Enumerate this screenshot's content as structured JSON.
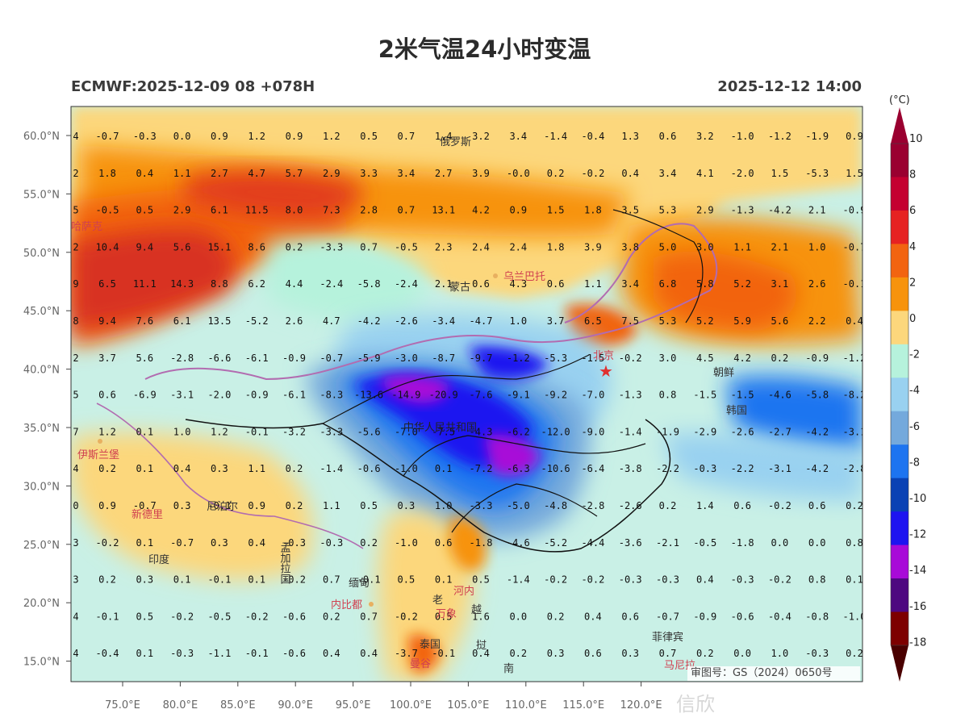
{
  "title": "2米气温24小时变温",
  "model_run": "ECMWF:2025-12-09 08 +078H",
  "valid_time": "2025-12-12 14:00",
  "colorbar": {
    "unit": "(°C)",
    "ticks": [
      "10",
      "8",
      "6",
      "4",
      "2",
      "0",
      "-2",
      "-4",
      "-6",
      "-8",
      "-10",
      "-12",
      "-14",
      "-16",
      "-18"
    ],
    "colors": [
      "#9a0030",
      "#c40030",
      "#e62222",
      "#f26411",
      "#f7930c",
      "#fcd77c",
      "#b6f2dc",
      "#99d1f0",
      "#74a9dc",
      "#1d74f0",
      "#0a42b4",
      "#1e14f0",
      "#a80ad8",
      "#4e0880",
      "#7d0000"
    ]
  },
  "lat_labels": [
    "60.0°N",
    "55.0°N",
    "50.0°N",
    "45.0°N",
    "40.0°N",
    "35.0°N",
    "30.0°N",
    "25.0°N",
    "20.0°N",
    "15.0°N"
  ],
  "lon_labels": [
    "75.0°E",
    "80.0°E",
    "85.0°E",
    "90.0°E",
    "95.0°E",
    "100.0°E",
    "105.0°E",
    "110.0°E",
    "115.0°E",
    "120.0°E"
  ],
  "grid_values": [
    [
      "4",
      "-0.7",
      "-0.3",
      "0.0",
      "0.9",
      "1.2",
      "0.9",
      "1.2",
      "0.5",
      "0.7",
      "1.4",
      "3.2",
      "3.4",
      "-1.4",
      "-0.4",
      "1.3",
      "0.6",
      "3.2",
      "-1.0",
      "-1.2",
      "-1.9",
      "0.9"
    ],
    [
      "2",
      "1.8",
      "0.4",
      "1.1",
      "2.7",
      "4.7",
      "5.7",
      "2.9",
      "3.3",
      "3.4",
      "2.7",
      "3.9",
      "-0.0",
      "0.2",
      "-0.2",
      "0.4",
      "3.4",
      "4.1",
      "-2.0",
      "1.5",
      "-5.3",
      "1.5"
    ],
    [
      "5",
      "-0.5",
      "0.5",
      "2.9",
      "6.1",
      "11.5",
      "8.0",
      "7.3",
      "2.8",
      "0.7",
      "13.1",
      "4.2",
      "0.9",
      "1.5",
      "1.8",
      "3.5",
      "5.3",
      "2.9",
      "-1.3",
      "-4.2",
      "2.1",
      "-0.9"
    ],
    [
      "2",
      "10.4",
      "9.4",
      "5.6",
      "15.1",
      "8.6",
      "0.2",
      "-3.3",
      "0.7",
      "-0.5",
      "2.3",
      "2.4",
      "2.4",
      "1.8",
      "3.9",
      "3.8",
      "5.0",
      "3.0",
      "1.1",
      "2.1",
      "1.0",
      "-0.7"
    ],
    [
      "9",
      "6.5",
      "11.1",
      "14.3",
      "8.8",
      "6.2",
      "4.4",
      "-2.4",
      "-5.8",
      "-2.4",
      "2.1",
      "0.6",
      "4.3",
      "0.6",
      "1.1",
      "3.4",
      "6.8",
      "5.8",
      "5.2",
      "3.1",
      "2.6",
      "-0.1"
    ],
    [
      "8",
      "9.4",
      "7.6",
      "6.1",
      "13.5",
      "-5.2",
      "2.6",
      "4.7",
      "-4.2",
      "-2.6",
      "-3.4",
      "-4.7",
      "1.0",
      "3.7",
      "6.5",
      "7.5",
      "5.3",
      "5.2",
      "5.9",
      "5.6",
      "2.2",
      "0.4"
    ],
    [
      "2",
      "3.7",
      "5.6",
      "-2.8",
      "-6.6",
      "-6.1",
      "-0.9",
      "-0.7",
      "-5.9",
      "-3.0",
      "-8.7",
      "-9.7",
      "-1.2",
      "-5.3",
      "-1.5",
      "-0.2",
      "3.0",
      "4.5",
      "4.2",
      "0.2",
      "-0.9",
      "-1.2"
    ],
    [
      "5",
      "0.6",
      "-6.9",
      "-3.1",
      "-2.0",
      "-0.9",
      "-6.1",
      "-8.3",
      "-13.6",
      "-14.9",
      "-20.9",
      "-7.6",
      "-9.1",
      "-9.2",
      "-7.0",
      "-1.3",
      "0.8",
      "-1.5",
      "-1.5",
      "-4.6",
      "-5.8",
      "-8.2"
    ],
    [
      "7",
      "1.2",
      "0.1",
      "1.0",
      "1.2",
      "-0.1",
      "-3.2",
      "-3.3",
      "-5.6",
      "-7.0",
      "-7.5",
      "-4.3",
      "-6.2",
      "-12.0",
      "-9.0",
      "-1.4",
      "-1.9",
      "-2.9",
      "-2.6",
      "-2.7",
      "-4.2",
      "-3.1"
    ],
    [
      "4",
      "0.2",
      "0.1",
      "0.4",
      "0.3",
      "1.1",
      "0.2",
      "-1.4",
      "-0.6",
      "-1.0",
      "0.1",
      "-7.2",
      "-6.3",
      "-10.6",
      "-6.4",
      "-3.8",
      "-2.2",
      "-0.3",
      "-2.2",
      "-3.1",
      "-4.2",
      "-2.8"
    ],
    [
      "0",
      "0.9",
      "-0.7",
      "0.3",
      "-0.1",
      "0.9",
      "0.2",
      "1.1",
      "0.5",
      "0.3",
      "1.0",
      "-3.3",
      "-5.0",
      "-4.8",
      "-2.8",
      "-2.6",
      "0.2",
      "1.4",
      "0.6",
      "-0.2",
      "0.6",
      "0.2"
    ],
    [
      "3",
      "-0.2",
      "0.1",
      "-0.7",
      "0.3",
      "0.4",
      "-0.3",
      "-0.3",
      "0.2",
      "-1.0",
      "0.6",
      "-1.8",
      "-4.6",
      "-5.2",
      "-4.4",
      "-3.6",
      "-2.1",
      "-0.5",
      "-1.8",
      "0.0",
      "0.0",
      "0.8"
    ],
    [
      "3",
      "0.2",
      "0.3",
      "0.1",
      "-0.1",
      "0.1",
      "-0.2",
      "0.7",
      "-0.1",
      "0.5",
      "0.1",
      "0.5",
      "-1.4",
      "-0.2",
      "-0.2",
      "-0.3",
      "-0.3",
      "0.4",
      "-0.3",
      "-0.2",
      "0.8",
      "0.1"
    ],
    [
      "4",
      "-0.1",
      "0.5",
      "-0.2",
      "-0.5",
      "-0.2",
      "-0.6",
      "0.2",
      "0.7",
      "-0.2",
      "0.5",
      "1.6",
      "0.0",
      "0.2",
      "0.4",
      "0.6",
      "-0.7",
      "-0.9",
      "-0.6",
      "-0.4",
      "-0.8",
      "-1.0"
    ],
    [
      "4",
      "-0.4",
      "0.1",
      "-0.3",
      "-1.1",
      "-0.1",
      "-0.6",
      "0.4",
      "0.4",
      "-3.7",
      "-0.1",
      "0.4",
      "0.2",
      "0.3",
      "0.6",
      "0.3",
      "0.7",
      "0.2",
      "0.0",
      "1.0",
      "-0.3",
      "0.2"
    ]
  ],
  "places": {
    "russia": "俄罗斯",
    "kazakhstan": "哈萨克",
    "mongolia": "蒙古",
    "ulaanbaatar": "乌兰巴托",
    "beijing": "北京",
    "north_korea": "朝鲜",
    "south_korea": "韩国",
    "china": "中华人民共和国",
    "islamabad": "伊斯兰堡",
    "new_delhi": "新德里",
    "nepal": "尼泊尔",
    "bangladesh": "孟加拉国",
    "india": "印度",
    "myanmar": "缅甸",
    "naypyidaw": "内比都",
    "hanoi": "河内",
    "laos": "老",
    "vientiane": "万象",
    "vietnam": "越",
    "thailand": "泰国",
    "cambodia": "挝",
    "bangkok": "曼谷",
    "south": "南",
    "philippines": "菲律宾",
    "manila": "马尼拉"
  },
  "review_number": "审图号：GS（2024）0650号",
  "watermark": "信欣"
}
